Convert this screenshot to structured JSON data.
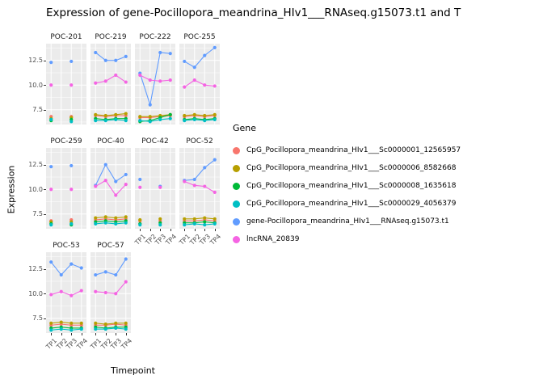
{
  "chart_data": {
    "type": "line",
    "title": "Expression of gene-Pocillopora_meandrina_HIv1___RNAseq.g15073.t1 and T",
    "xlabel": "Timepoint",
    "ylabel": "Expression",
    "legend_title": "Gene",
    "x": [
      "TP1",
      "TP2",
      "TP3",
      "TP4"
    ],
    "yticks": [
      7.5,
      10.0,
      12.5
    ],
    "ytick_labels": [
      "7.5",
      "10.0",
      "12.5"
    ],
    "minor_yticks": [
      6.25,
      8.75,
      11.25,
      13.75
    ],
    "ylim": [
      6,
      14.2
    ],
    "panel_bg": "#EBEBEB",
    "grid_color": "#FFFFFF",
    "legend_position": "right",
    "series": [
      {
        "label": "CpG_Pocillopora_meandrina_HIv1___Sc0000001_12565957",
        "color": "#F8766D"
      },
      {
        "label": "CpG_Pocillopora_meandrina_HIv1___Sc0000006_8582668",
        "color": "#B79F00"
      },
      {
        "label": "CpG_Pocillopora_meandrina_HIv1___Sc0000008_1635618",
        "color": "#00BA38"
      },
      {
        "label": "CpG_Pocillopora_meandrina_HIv1___Sc0000029_4056379",
        "color": "#00BFC4"
      },
      {
        "label": "gene-Pocillopora_meandrina_HIv1___RNAseq.g15073.t1",
        "color": "#619CFF"
      },
      {
        "label": "lncRNA_20839",
        "color": "#F564E3"
      }
    ],
    "facets": [
      {
        "label": "POC-201",
        "series": [
          [
            6.8,
            null,
            6.8,
            null
          ],
          [
            6.6,
            null,
            6.7,
            null
          ],
          [
            6.4,
            null,
            6.5,
            null
          ],
          [
            6.5,
            null,
            6.3,
            null
          ],
          [
            12.3,
            null,
            12.4,
            null
          ],
          [
            10.0,
            null,
            10.0,
            null
          ]
        ]
      },
      {
        "label": "POC-219",
        "series": [
          [
            6.9,
            6.8,
            6.9,
            6.9
          ],
          [
            7.0,
            6.9,
            7.0,
            7.1
          ],
          [
            6.6,
            6.5,
            6.6,
            6.6
          ],
          [
            6.4,
            6.4,
            6.5,
            6.4
          ],
          [
            13.3,
            12.5,
            12.5,
            12.9
          ],
          [
            10.2,
            10.4,
            11.0,
            10.3
          ]
        ]
      },
      {
        "label": "POC-222",
        "series": [
          [
            6.7,
            6.7,
            6.8,
            6.9
          ],
          [
            6.8,
            6.8,
            6.9,
            7.0
          ],
          [
            6.3,
            6.4,
            6.7,
            7.0
          ],
          [
            6.4,
            6.3,
            6.5,
            6.6
          ],
          [
            11.2,
            8.0,
            13.3,
            13.2
          ],
          [
            11.0,
            10.5,
            10.4,
            10.5
          ]
        ]
      },
      {
        "label": "POC-255",
        "series": [
          [
            6.8,
            6.9,
            6.8,
            6.9
          ],
          [
            6.9,
            7.0,
            6.9,
            7.0
          ],
          [
            6.5,
            6.6,
            6.5,
            6.6
          ],
          [
            6.4,
            6.5,
            6.4,
            6.5
          ],
          [
            12.4,
            11.8,
            13.0,
            13.8
          ],
          [
            9.8,
            10.5,
            10.0,
            9.9
          ]
        ]
      },
      {
        "label": "POC-259",
        "series": [
          [
            6.8,
            null,
            6.9,
            null
          ],
          [
            6.7,
            null,
            6.7,
            null
          ],
          [
            6.5,
            null,
            6.4,
            null
          ],
          [
            6.4,
            null,
            6.5,
            null
          ],
          [
            12.3,
            null,
            12.4,
            null
          ],
          [
            10.0,
            null,
            10.0,
            null
          ]
        ]
      },
      {
        "label": "POC-40",
        "series": [
          [
            6.9,
            7.0,
            6.9,
            7.0
          ],
          [
            7.1,
            7.2,
            7.1,
            7.2
          ],
          [
            6.7,
            6.8,
            6.7,
            6.8
          ],
          [
            6.5,
            6.6,
            6.5,
            6.6
          ],
          [
            10.4,
            12.5,
            10.8,
            11.5
          ],
          [
            10.3,
            10.9,
            9.4,
            10.5
          ]
        ]
      },
      {
        "label": "POC-42",
        "series": [
          [
            6.8,
            null,
            6.8,
            null
          ],
          [
            6.9,
            null,
            7.0,
            null
          ],
          [
            6.5,
            null,
            6.6,
            null
          ],
          [
            6.4,
            null,
            6.4,
            null
          ],
          [
            11.0,
            null,
            10.3,
            null
          ],
          [
            10.2,
            null,
            10.2,
            null
          ]
        ]
      },
      {
        "label": "POC-52",
        "series": [
          [
            6.8,
            6.8,
            6.9,
            6.8
          ],
          [
            7.0,
            7.0,
            7.1,
            7.0
          ],
          [
            6.6,
            6.6,
            6.7,
            6.6
          ],
          [
            6.4,
            6.5,
            6.4,
            6.5
          ],
          [
            10.9,
            11.0,
            12.2,
            13.0
          ],
          [
            10.8,
            10.4,
            10.3,
            9.7
          ]
        ]
      },
      {
        "label": "POC-53",
        "series": [
          [
            6.8,
            6.9,
            6.8,
            6.8
          ],
          [
            7.0,
            7.1,
            7.0,
            7.0
          ],
          [
            6.5,
            6.6,
            6.5,
            6.5
          ],
          [
            6.3,
            6.4,
            6.3,
            6.4
          ],
          [
            13.2,
            11.9,
            13.0,
            12.6
          ],
          [
            9.9,
            10.2,
            9.8,
            10.3
          ]
        ]
      },
      {
        "label": "POC-57",
        "series": [
          [
            6.8,
            6.8,
            6.9,
            6.8
          ],
          [
            7.0,
            6.9,
            7.0,
            7.0
          ],
          [
            6.6,
            6.5,
            6.6,
            6.6
          ],
          [
            6.4,
            6.4,
            6.5,
            6.4
          ],
          [
            11.9,
            12.2,
            11.9,
            13.5
          ],
          [
            10.2,
            10.1,
            10.0,
            11.2
          ]
        ]
      }
    ]
  }
}
